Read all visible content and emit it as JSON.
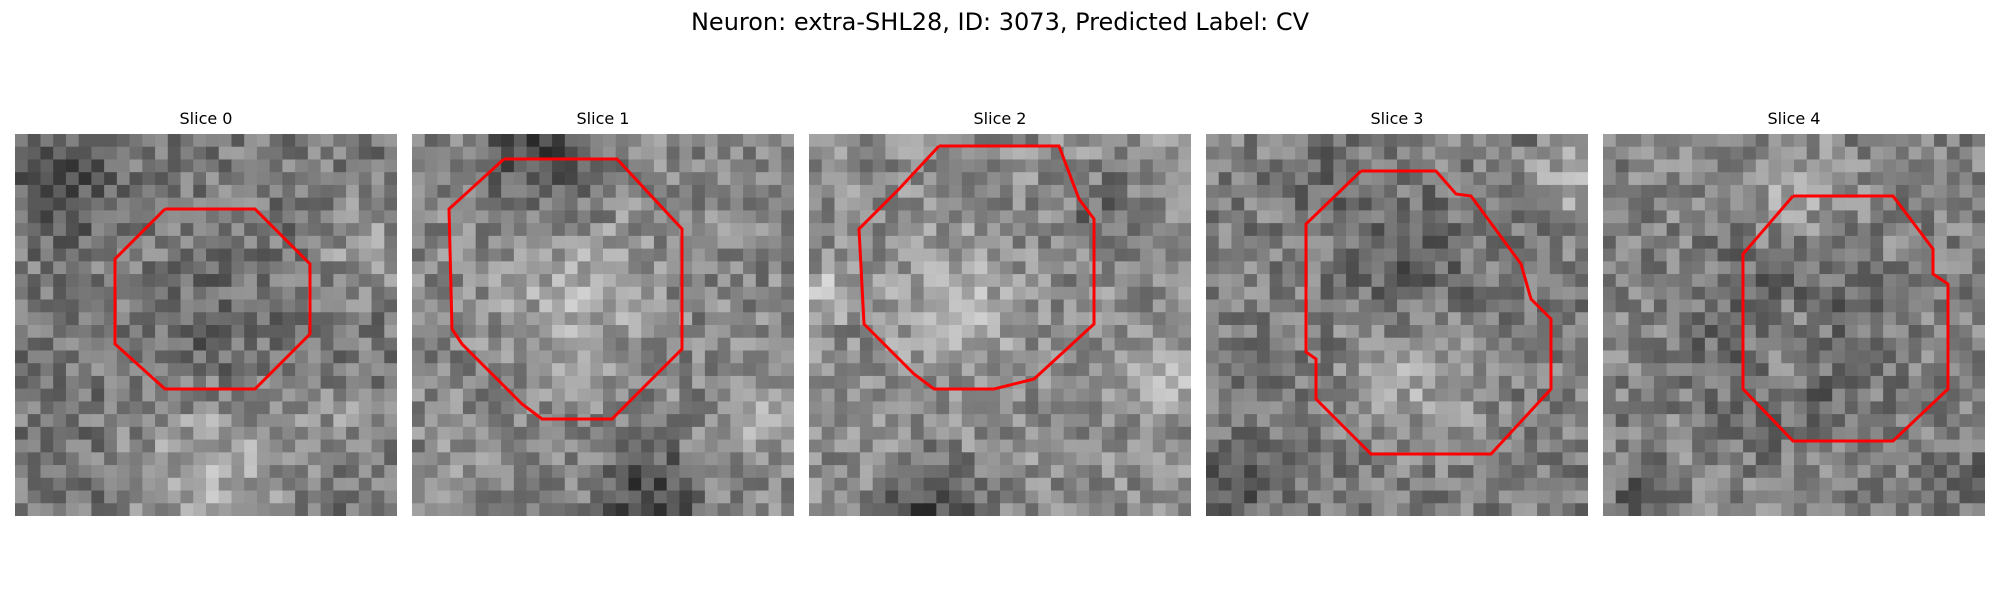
{
  "figure": {
    "title": "Neuron: extra-SHL28, ID: 3073, Predicted Label: CV"
  },
  "colors": {
    "outline": "#ff0000",
    "background": "#ffffff"
  },
  "panels": [
    {
      "title": "Slice 0"
    },
    {
      "title": "Slice 1"
    },
    {
      "title": "Slice 2"
    },
    {
      "title": "Slice 3"
    },
    {
      "title": "Slice 4"
    }
  ]
}
